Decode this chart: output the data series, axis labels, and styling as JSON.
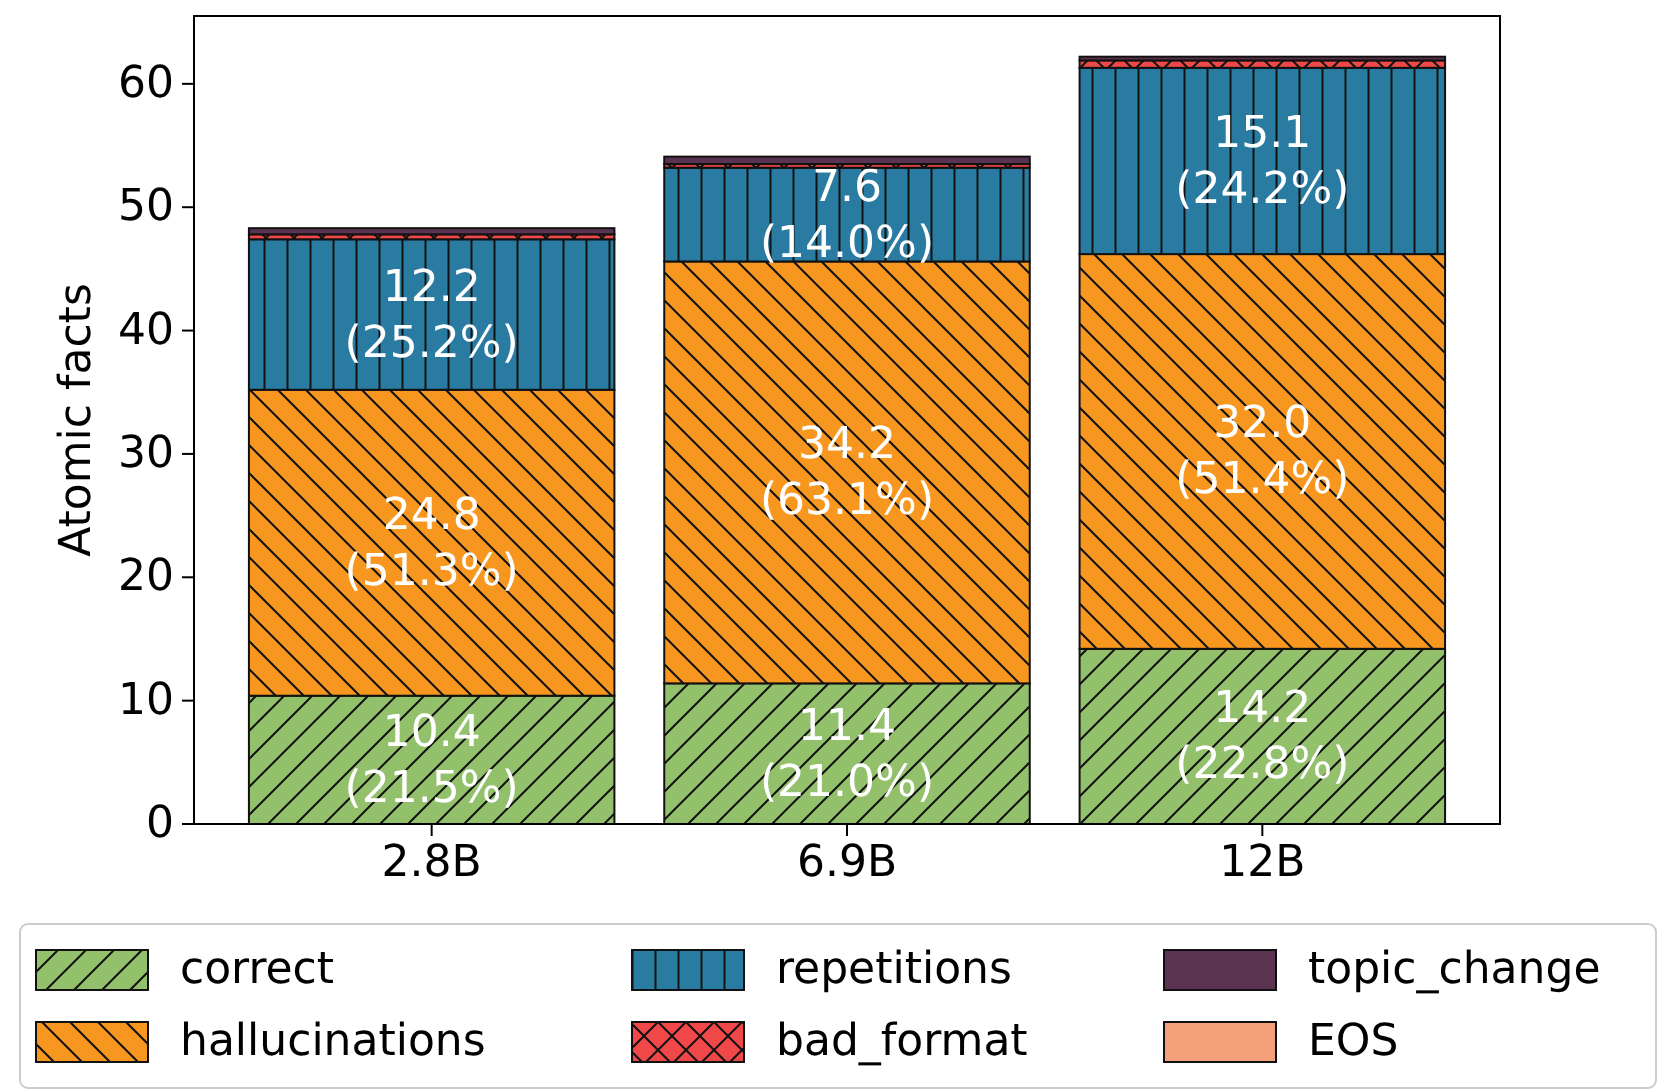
{
  "chart_data": {
    "type": "bar",
    "stacked": true,
    "ylabel": "Atomic facts",
    "categories": [
      "2.8B",
      "6.9B",
      "12B"
    ],
    "ylim": [
      0,
      65.5
    ],
    "yticks": [
      0,
      10,
      20,
      30,
      40,
      50,
      60
    ],
    "grid": false,
    "legend": "bottom",
    "series": [
      {
        "name": "correct",
        "color": "#93c06b",
        "values": [
          10.4,
          11.4,
          14.2
        ],
        "value_labels": [
          "10.4\n(21.5%)",
          "11.4\n(21.0%)",
          "14.2\n(22.8%)"
        ]
      },
      {
        "name": "hallucinations",
        "color": "#f7971f",
        "values": [
          24.8,
          34.2,
          32.0
        ],
        "value_labels": [
          "24.8\n(51.3%)",
          "34.2\n(63.1%)",
          "32.0\n(51.4%)"
        ]
      },
      {
        "name": "repetitions",
        "color": "#2a7ba1",
        "values": [
          12.2,
          7.6,
          15.1
        ],
        "value_labels": [
          "12.2\n(25.2%)",
          "7.6\n(14.0%)",
          "15.1\n(24.2%)"
        ]
      },
      {
        "name": "bad_format",
        "color": "#f04848",
        "values": [
          0.4,
          0.3,
          0.6
        ]
      },
      {
        "name": "topic_change",
        "color": "#5a3350",
        "values": [
          0.5,
          0.6,
          0.3
        ]
      },
      {
        "name": "EOS",
        "color": "#f4a07a",
        "values": [
          0,
          0,
          0
        ]
      }
    ]
  }
}
